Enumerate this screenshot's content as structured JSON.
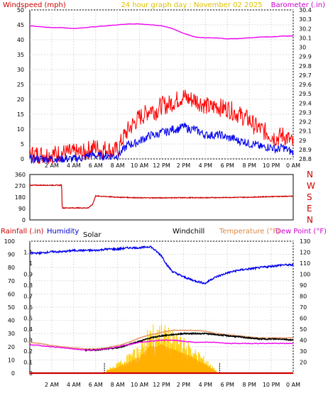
{
  "page_title": "24 hour graph day : November 02 2025",
  "chart_data": [
    {
      "id": "wind_baro",
      "type": "line",
      "titles": {
        "left": "Windspeed (mph)",
        "center": "24 hour graph day : November 02 2025",
        "right": "Barometer (.in)"
      },
      "x_ticks": [
        "2 AM",
        "4 AM",
        "6 AM",
        "8 AM",
        "10 AM",
        "12 PM",
        "2 PM",
        "4 PM",
        "6 PM",
        "8 PM",
        "10 PM",
        "0 AM"
      ],
      "x_range_hours": [
        0,
        24
      ],
      "y_left_range": [
        0,
        50
      ],
      "y_left_ticks": [
        "0",
        "5",
        "10",
        "15",
        "20",
        "25",
        "30",
        "35",
        "40",
        "45",
        "50"
      ],
      "y_right_range": [
        28.8,
        30.4
      ],
      "y_right_ticks": [
        "28.8",
        "28.9",
        "29",
        "29.1",
        "29.2",
        "29.3",
        "29.4",
        "29.5",
        "29.6",
        "29.7",
        "29.8",
        "29.9",
        "30",
        "30.1",
        "30.2",
        "30.3",
        "30.4"
      ],
      "grid": true,
      "colors": {
        "gust": "#ff0000",
        "speed": "#0000ee",
        "barometer": "#ee00ee"
      },
      "series": [
        {
          "axis": "left",
          "color": "#ff0000",
          "x": [
            0,
            1,
            2,
            3,
            4,
            5,
            5.5,
            6,
            6.5,
            7,
            7.5,
            8,
            8.5,
            9,
            9.5,
            10,
            10.5,
            11,
            11.5,
            12,
            12.5,
            13,
            13.5,
            14,
            14.5,
            15,
            15.5,
            16,
            16.5,
            17,
            17.5,
            18,
            18.5,
            19,
            19.5,
            20,
            20.5,
            21,
            21.5,
            22,
            22.5,
            23,
            23.5,
            24
          ],
          "y": [
            1.5,
            1.5,
            1.5,
            2,
            2,
            2,
            3.5,
            4,
            3,
            3.5,
            2.5,
            3,
            7,
            10,
            12,
            14,
            15,
            17,
            16,
            18,
            18,
            19,
            20,
            21,
            20,
            20,
            19,
            18,
            17,
            18,
            17,
            17,
            16,
            15,
            14,
            13,
            11,
            10,
            9,
            8,
            7,
            8,
            7,
            5
          ]
        },
        {
          "axis": "left",
          "color": "#0000ee",
          "x": [
            0,
            1,
            2,
            3,
            4,
            5,
            5.5,
            6,
            6.5,
            7,
            7.5,
            8,
            8.5,
            9,
            9.5,
            10,
            10.5,
            11,
            11.5,
            12,
            12.5,
            13,
            13.5,
            14,
            14.5,
            15,
            15.5,
            16,
            16.5,
            17,
            17.5,
            18,
            18.5,
            19,
            19.5,
            20,
            20.5,
            21,
            21.5,
            22,
            22.5,
            23,
            23.5,
            24
          ],
          "y": [
            0,
            0,
            0,
            0,
            0,
            0.5,
            1.5,
            1,
            1,
            1,
            1,
            1,
            3,
            5,
            5,
            6,
            7,
            8,
            8,
            9,
            9,
            10,
            10,
            11,
            10,
            10,
            9,
            8,
            8,
            8,
            8,
            7,
            7,
            6,
            6,
            5,
            5,
            4,
            4,
            4,
            3,
            4,
            3,
            2
          ]
        },
        {
          "axis": "right",
          "color": "#ee00ee",
          "x": [
            0,
            1,
            2,
            3,
            4,
            5,
            6,
            7,
            8,
            9,
            10,
            11,
            12,
            13,
            14,
            15,
            16,
            17,
            18,
            19,
            20,
            21,
            22,
            23,
            24
          ],
          "y": [
            30.23,
            30.22,
            30.21,
            30.21,
            30.2,
            30.21,
            30.22,
            30.23,
            30.24,
            30.25,
            30.25,
            30.24,
            30.23,
            30.2,
            30.15,
            30.11,
            30.1,
            30.1,
            30.09,
            30.09,
            30.1,
            30.11,
            30.11,
            30.12,
            30.12
          ]
        }
      ]
    },
    {
      "id": "wind_direction",
      "type": "line",
      "x_range_hours": [
        0,
        24
      ],
      "y_range": [
        0,
        360
      ],
      "y_ticks": [
        "0",
        "90",
        "180",
        "270",
        "360"
      ],
      "direction_labels": [
        "N",
        "W",
        "S",
        "E",
        "N"
      ],
      "series": [
        {
          "color": "#cc0000",
          "x": [
            0,
            2.9,
            2.95,
            5.3,
            5.7,
            6,
            7,
            8,
            9,
            10,
            12,
            14,
            16,
            18,
            20,
            22,
            24
          ],
          "y": [
            275,
            275,
            95,
            95,
            120,
            190,
            185,
            180,
            178,
            175,
            175,
            176,
            176,
            178,
            180,
            185,
            188
          ]
        }
      ]
    },
    {
      "id": "temp_humidity",
      "type": "line",
      "titles": {
        "rainfall": "Rainfall (.in)",
        "humidity": "Humidity",
        "solar": "Solar",
        "windchill": "Windchill",
        "temperature": "Temperature (°F)",
        "dewpoint": "Dew Point (°F)"
      },
      "x_ticks": [
        "2 AM",
        "4 AM",
        "6 AM",
        "8 AM",
        "10 AM",
        "12 PM",
        "2 PM",
        "4 PM",
        "6 PM",
        "8 PM",
        "10 PM",
        "0 AM"
      ],
      "x_range_hours": [
        0,
        24
      ],
      "y_humidity_range": [
        0,
        100
      ],
      "y_humidity_ticks": [
        "0",
        "10",
        "20",
        "30",
        "40",
        "50",
        "60",
        "70",
        "80",
        "90",
        "100"
      ],
      "y_rain_range": [
        0,
        1.2
      ],
      "y_rain_ticks": [
        "0",
        "0.1",
        "0.2",
        "0.3",
        "0.4",
        "0.5",
        "0.6",
        "0.7",
        "0.8",
        "0.9",
        "1",
        "1.1"
      ],
      "y_temp_range": [
        10,
        130
      ],
      "y_temp_ticks": [
        "20",
        "30",
        "40",
        "50",
        "60",
        "70",
        "80",
        "90",
        "100",
        "110",
        "120",
        "130"
      ],
      "grid": true,
      "colors": {
        "humidity": "#0000ee",
        "temperature": "#e59866",
        "dewpoint": "#ee00ee",
        "windchill": "#000000",
        "rain": "#cc0000",
        "solar": "#ffcc00"
      },
      "solar_markers_hours": [
        6.8,
        17.3
      ],
      "solar": {
        "x": [
          7,
          8,
          9,
          10,
          10.5,
          11,
          11.5,
          12,
          12.5,
          13,
          13.5,
          14,
          14.5,
          15,
          15.5,
          16,
          16.5,
          17
        ],
        "y": [
          3,
          8,
          15,
          22,
          30,
          38,
          36,
          40,
          36,
          33,
          30,
          27,
          24,
          20,
          16,
          12,
          7,
          2
        ]
      },
      "series": [
        {
          "name": "Humidity",
          "axis": "humidity",
          "color": "#0000ee",
          "x": [
            0,
            1,
            2,
            3,
            4,
            5,
            6,
            7,
            8,
            9,
            10,
            11,
            12,
            12.5,
            13,
            14,
            15,
            16,
            16.5,
            17,
            18,
            19,
            20,
            21,
            22,
            23,
            24
          ],
          "y": [
            91,
            91,
            92,
            92,
            93,
            93,
            93,
            94,
            94,
            95,
            95,
            96,
            89,
            82,
            77,
            73,
            70,
            68,
            71,
            73,
            76,
            78,
            79,
            80,
            81,
            82,
            82
          ]
        },
        {
          "name": "Temperature",
          "axis": "temp",
          "color": "#e59866",
          "x": [
            0,
            1,
            2,
            3,
            4,
            5,
            6,
            7,
            8,
            9,
            10,
            11,
            12,
            13,
            14,
            15,
            16,
            17,
            18,
            19,
            20,
            21,
            22,
            23,
            24
          ],
          "y": [
            38,
            37,
            35,
            34,
            33,
            32,
            32,
            33,
            35,
            38,
            42,
            45,
            47,
            49,
            49,
            49,
            48,
            46,
            45,
            44,
            43,
            42,
            42,
            42,
            42
          ]
        },
        {
          "name": "Windchill",
          "axis": "temp",
          "color": "#000000",
          "x": [
            5,
            6,
            7,
            8,
            9,
            10,
            11,
            12,
            13,
            14,
            15,
            16,
            17,
            18,
            19,
            20,
            21,
            22,
            23,
            24
          ],
          "y": [
            31,
            31,
            32,
            33,
            36,
            39,
            42,
            44,
            45,
            46,
            46,
            46,
            45,
            44,
            43,
            42,
            41,
            41,
            41,
            40
          ]
        },
        {
          "name": "Dew Point",
          "axis": "temp",
          "color": "#ee00ee",
          "x": [
            0,
            1,
            2,
            3,
            4,
            5,
            6,
            7,
            8,
            9,
            10,
            11,
            12,
            13,
            14,
            15,
            16,
            17,
            18,
            19,
            20,
            21,
            22,
            23,
            24
          ],
          "y": [
            36,
            35,
            34,
            33,
            32,
            31,
            31,
            32,
            34,
            36,
            38,
            39,
            40,
            40,
            39,
            38,
            38,
            38,
            37,
            37,
            37,
            37,
            37,
            37,
            37
          ]
        },
        {
          "name": "Rainfall",
          "axis": "rain",
          "color": "#cc0000",
          "x": [
            0,
            24
          ],
          "y": [
            0,
            0
          ]
        }
      ]
    }
  ]
}
